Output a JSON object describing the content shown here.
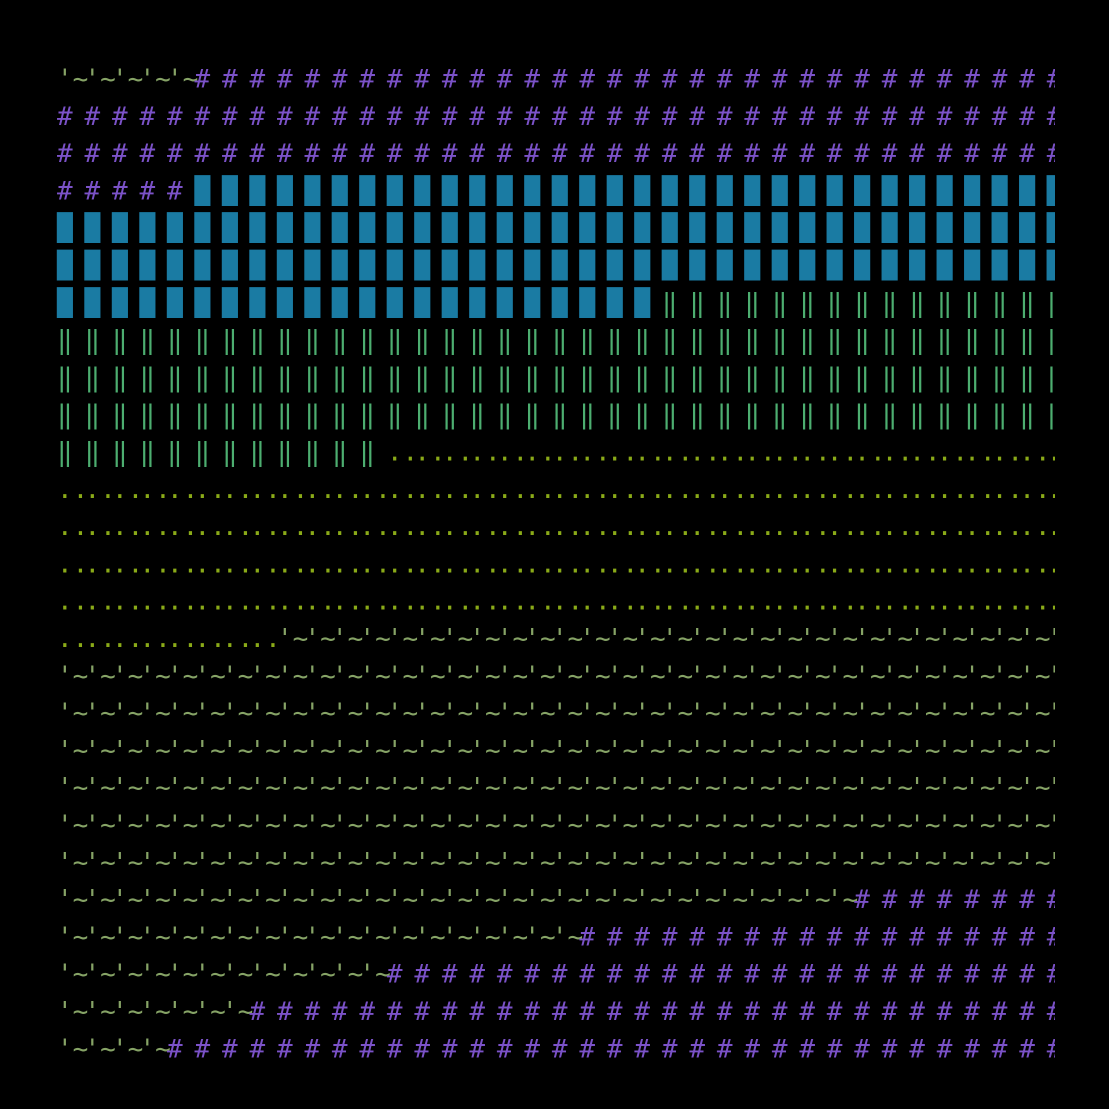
{
  "symbols": [
    {
      "glyph": "'~",
      "color": "#86a366"
    },
    {
      "glyph": "#",
      "color": "#7b52c8"
    },
    {
      "glyph": "█",
      "color": "#1a7ba3"
    },
    {
      "glyph": "‖",
      "color": "#4dae70"
    },
    {
      "glyph": "..",
      "color": "#8aaa18"
    }
  ],
  "columns": 37,
  "rows": [
    [
      [
        0,
        5
      ],
      [
        1,
        32
      ]
    ],
    [
      [
        1,
        37
      ]
    ],
    [
      [
        1,
        37
      ]
    ],
    [
      [
        1,
        5
      ],
      [
        2,
        32
      ]
    ],
    [
      [
        2,
        37
      ]
    ],
    [
      [
        2,
        37
      ]
    ],
    [
      [
        2,
        22
      ],
      [
        3,
        15
      ]
    ],
    [
      [
        3,
        37
      ]
    ],
    [
      [
        3,
        37
      ]
    ],
    [
      [
        3,
        37
      ]
    ],
    [
      [
        3,
        12
      ],
      [
        4,
        25
      ]
    ],
    [
      [
        4,
        37
      ]
    ],
    [
      [
        4,
        37
      ]
    ],
    [
      [
        4,
        37
      ]
    ],
    [
      [
        4,
        37
      ]
    ],
    [
      [
        4,
        8
      ],
      [
        0,
        29
      ]
    ],
    [
      [
        0,
        37
      ]
    ],
    [
      [
        0,
        37
      ]
    ],
    [
      [
        0,
        37
      ]
    ],
    [
      [
        0,
        37
      ]
    ],
    [
      [
        0,
        37
      ]
    ],
    [
      [
        0,
        37
      ]
    ],
    [
      [
        0,
        29
      ],
      [
        1,
        8
      ]
    ],
    [
      [
        0,
        19
      ],
      [
        1,
        18
      ]
    ],
    [
      [
        0,
        12
      ],
      [
        1,
        25
      ]
    ],
    [
      [
        0,
        7
      ],
      [
        1,
        30
      ]
    ],
    [
      [
        0,
        4
      ],
      [
        1,
        33
      ]
    ]
  ]
}
